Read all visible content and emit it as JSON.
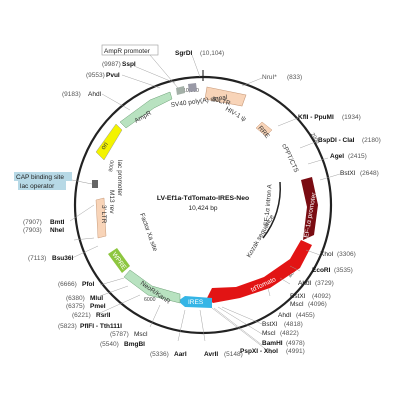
{
  "plasmid": {
    "name": "LV-Ef1a-TdTomato-IRES-Neo",
    "size": "10,424 bp"
  },
  "ticks": [
    "10,000",
    "2000",
    "4000",
    "6000",
    "8000"
  ],
  "sites": {
    "sgrdi": {
      "name": "SgrDI",
      "pos": "(10,104)"
    },
    "sspi": {
      "name": "SspI",
      "pos": "(9987)"
    },
    "pvui": {
      "name": "PvuI",
      "pos": "(9553)"
    },
    "ahdi1": {
      "name": "AhdI",
      "pos": "(9183)"
    },
    "nrui": {
      "name": "NruI*",
      "pos": "(833)"
    },
    "kfli": {
      "name": "KflI - PpuMI",
      "pos": "(1934)"
    },
    "bspdi": {
      "name": "BspDI - ClaI",
      "pos": "(2180)"
    },
    "agei": {
      "name": "AgeI",
      "pos": "(2415)"
    },
    "bstxi1": {
      "name": "BstXI",
      "pos": "(2648)"
    },
    "bmti": {
      "name": "BmtI",
      "pos": "(7907)"
    },
    "nhei": {
      "name": "NheI",
      "pos": "(7903)"
    },
    "bsu36i": {
      "name": "Bsu36I",
      "pos": "(7113)"
    },
    "xhoi1": {
      "name": "XhoI",
      "pos": "(3306)"
    },
    "ecori": {
      "name": "EcoRI",
      "pos": "(3535)"
    },
    "ahdi2": {
      "name": "AhdI",
      "pos": "(3729)"
    },
    "bstxi2": {
      "name": "BstXI",
      "pos": "(4092)"
    },
    "msci1": {
      "name": "MscI",
      "pos": "(4096)"
    },
    "ahdi3": {
      "name": "AhdI",
      "pos": "(4455)"
    },
    "pfoi": {
      "name": "PfoI",
      "pos": "(6666)"
    },
    "mlui": {
      "name": "MluI",
      "pos": "(6380)"
    },
    "pmei": {
      "name": "PmeI",
      "pos": "(6375)"
    },
    "rsrii": {
      "name": "RsrII",
      "pos": "(6221)"
    },
    "pflfi": {
      "name": "PflFI - Tth111I",
      "pos": "(5823)"
    },
    "msci2": {
      "name": "MscI",
      "pos": "(5787)"
    },
    "bmgbi": {
      "name": "BmgBI",
      "pos": "(5540)"
    },
    "aari": {
      "name": "AarI",
      "pos": "(5336)"
    },
    "avrii": {
      "name": "AvrII",
      "pos": "(5148)"
    },
    "bstxi3": {
      "name": "BstXI",
      "pos": "(4818)"
    },
    "msci3": {
      "name": "MscI",
      "pos": "(4822)"
    },
    "bamhi": {
      "name": "BamHI",
      "pos": "(4978)"
    },
    "pspxi": {
      "name": "PspXI - XhoI",
      "pos": "(4991)"
    }
  },
  "features": {
    "ampr_promoter": "AmpR promoter",
    "ampr": "AmpR",
    "sv40": "SV40 poly(A) signal",
    "ltr5": "5' LTR",
    "hiv": "HIV-1 ψ",
    "rre": "RRE",
    "cppt": "cPPT/CTS",
    "ef1a_promoter": "EF-1α promoter",
    "ef1a_intron": "EF-1α intron A",
    "kozak": "Kozak sequence",
    "tdtomato": "tdTomato",
    "ires": "IRES",
    "neor": "NeoR/KanR",
    "wpre": "WPRE",
    "factor_xa": "Factor Xa site",
    "ltr3": "3' LTR",
    "ori": "ori",
    "lac_promoter": "lac promoter",
    "m13rev": "M13 rev",
    "cap_site": "CAP binding site",
    "lac_operator": "lac operator"
  },
  "colors": {
    "ampr": "#b8e2c0",
    "ori": "#f3f300",
    "ltr": "#f8d4b8",
    "ef1a": "#7a0c12",
    "tdtomato": "#e21414",
    "ires": "#35b5e6",
    "neor": "#b8e2c0",
    "wpre": "#8dc63f",
    "cap": "#b7d9e6",
    "backbone": "#222222"
  }
}
